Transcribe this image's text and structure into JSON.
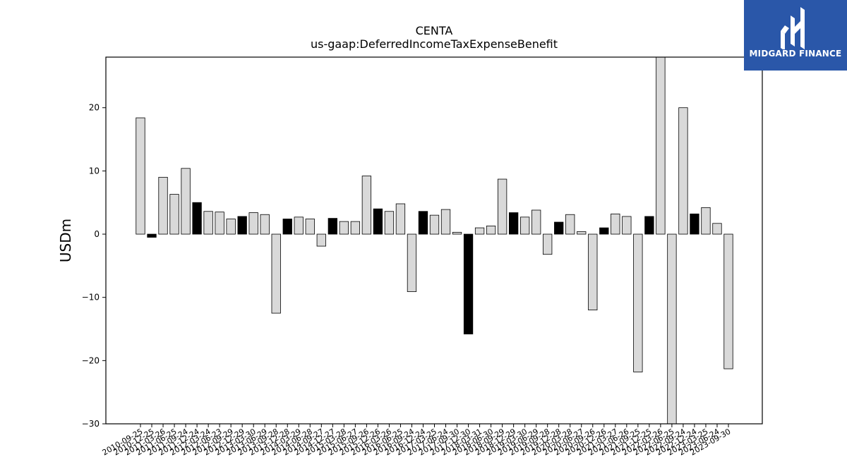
{
  "logo": {
    "text": "MIDGARD FINANCE",
    "background": "#2a57a9"
  },
  "chart_data": {
    "type": "bar",
    "title": "CENTA",
    "subtitle": "us-gaap:DeferredIncomeTaxExpenseBenefit",
    "xlabel": "",
    "ylabel": "USDm",
    "ylim": [
      -30,
      28
    ],
    "yticks": [
      -30,
      -20,
      -10,
      0,
      10,
      20
    ],
    "grid": false,
    "colors": {
      "light": "#d9d9d9",
      "dark": "#000000",
      "edge": "#000000"
    },
    "categories": [
      "2010-09-25",
      "2010-12-25",
      "2011-03-26",
      "2011-06-25",
      "2011-09-24",
      "2011-12-24",
      "2012-03-24",
      "2012-06-23",
      "2012-09-29",
      "2012-12-29",
      "2013-03-30",
      "2013-06-29",
      "2013-09-28",
      "2013-12-28",
      "2014-03-29",
      "2014-06-28",
      "2014-09-27",
      "2014-12-27",
      "2015-03-28",
      "2015-06-27",
      "2015-09-26",
      "2015-12-26",
      "2016-03-26",
      "2016-06-25",
      "2016-09-24",
      "2016-12-24",
      "2017-03-25",
      "2017-06-24",
      "2017-09-30",
      "2017-12-30",
      "2018-03-31",
      "2018-06-30",
      "2018-09-29",
      "2018-12-29",
      "2019-03-30",
      "2019-06-29",
      "2019-09-28",
      "2019-12-28",
      "2020-03-28",
      "2020-06-27",
      "2020-09-26",
      "2020-12-26",
      "2021-03-27",
      "2021-06-26",
      "2021-09-25",
      "2021-12-25",
      "2022-03-26",
      "2022-06-25",
      "2022-09-24",
      "2022-12-24",
      "2023-03-25",
      "2023-06-24",
      "2023-09-30"
    ],
    "values": [
      18.4,
      -0.5,
      9.0,
      6.3,
      10.4,
      5.0,
      3.6,
      3.5,
      2.4,
      2.8,
      3.4,
      3.1,
      -12.5,
      2.4,
      2.7,
      2.4,
      -1.9,
      2.5,
      2.0,
      2.0,
      9.2,
      4.0,
      3.6,
      4.8,
      -9.1,
      3.6,
      3.0,
      3.9,
      0.3,
      -15.8,
      1.0,
      1.3,
      8.7,
      3.4,
      2.7,
      3.8,
      -3.2,
      1.9,
      3.1,
      0.4,
      -12.0,
      1.0,
      3.2,
      2.8,
      -21.8,
      2.8,
      28.0,
      -30.0,
      20.0,
      3.2,
      4.2,
      1.7,
      -21.3
    ],
    "fill": [
      "light",
      "dark",
      "light",
      "light",
      "light",
      "dark",
      "light",
      "light",
      "light",
      "dark",
      "light",
      "light",
      "light",
      "dark",
      "light",
      "light",
      "light",
      "dark",
      "light",
      "light",
      "light",
      "dark",
      "light",
      "light",
      "light",
      "dark",
      "light",
      "light",
      "light",
      "dark",
      "light",
      "light",
      "light",
      "dark",
      "light",
      "light",
      "light",
      "dark",
      "light",
      "light",
      "light",
      "dark",
      "light",
      "light",
      "light",
      "dark",
      "light",
      "light",
      "light",
      "dark",
      "light",
      "light",
      "light"
    ]
  }
}
